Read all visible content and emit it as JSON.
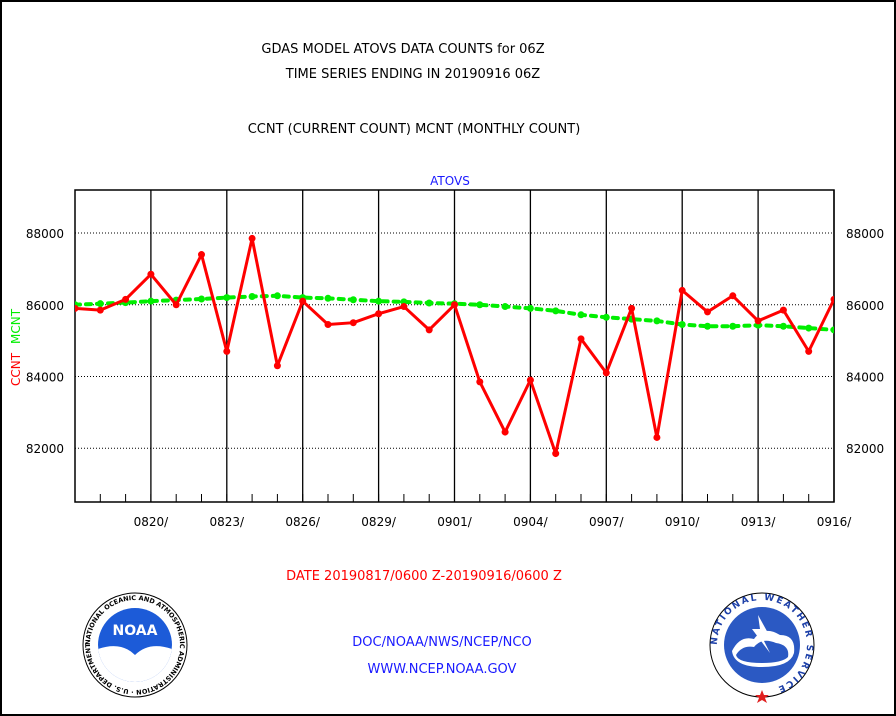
{
  "title_line1": "GDAS MODEL ATOVS DATA COUNTS for 06Z",
  "title_line2": "TIME SERIES ENDING IN 20190916 06Z",
  "legend_text": "CCNT (CURRENT COUNT) MCNT (MONTHLY COUNT)",
  "plot_label": "ATOVS",
  "ylabel_ccnt": "CCNT",
  "ylabel_mcnt": "MCNT",
  "date_range": "DATE 20190817/0600 Z-20190916/0600 Z",
  "footer_line1": "DOC/NOAA/NWS/NCEP/NCO",
  "footer_line2": "WWW.NCEP.NOAA.GOV",
  "noaa_logo_text": "NOAA",
  "noaa_ring_text": "NATIONAL OCEANIC AND ATMOSPHERIC ADMINISTRATION · U.S. DEPARTMENT OF COMMERCE",
  "nws_ring_text": "NATIONAL WEATHER SERVICE",
  "colors": {
    "ccnt": "#ff0000",
    "mcnt": "#00ee00",
    "label_blue": "#1a1aff",
    "noaa_blue": "#1c5bd8",
    "nws_blue": "#2b59c3"
  },
  "chart_data": {
    "type": "line",
    "x": [
      "0817",
      "0818",
      "0819",
      "0820",
      "0821",
      "0822",
      "0823",
      "0824",
      "0825",
      "0826",
      "0827",
      "0828",
      "0829",
      "0830",
      "0831",
      "0901",
      "0902",
      "0903",
      "0904",
      "0905",
      "0906",
      "0907",
      "0908",
      "0909",
      "0910",
      "0911",
      "0912",
      "0913",
      "0914",
      "0915",
      "0916"
    ],
    "x_tick_labels": [
      "0820/",
      "0823/",
      "0826/",
      "0829/",
      "0901/",
      "0904/",
      "0907/",
      "0910/",
      "0913/",
      "0916/"
    ],
    "y_tick_labels": [
      "82000",
      "84000",
      "86000",
      "88000"
    ],
    "ylim": [
      80500,
      89200
    ],
    "grid": true,
    "series": [
      {
        "name": "CCNT",
        "values": [
          85900,
          85850,
          86150,
          86850,
          86000,
          87400,
          84700,
          87850,
          84300,
          86100,
          85450,
          85500,
          85750,
          85950,
          85300,
          86000,
          83850,
          82450,
          83900,
          81850,
          85050,
          84100,
          85900,
          82300,
          86400,
          85800,
          86250,
          85550,
          85850,
          84700,
          86150
        ]
      },
      {
        "name": "MCNT",
        "values": [
          86000,
          86030,
          86060,
          86100,
          86130,
          86160,
          86200,
          86230,
          86250,
          86200,
          86180,
          86140,
          86100,
          86080,
          86050,
          86030,
          86000,
          85950,
          85900,
          85830,
          85720,
          85650,
          85600,
          85550,
          85450,
          85400,
          85400,
          85430,
          85400,
          85350,
          85300
        ]
      }
    ]
  }
}
